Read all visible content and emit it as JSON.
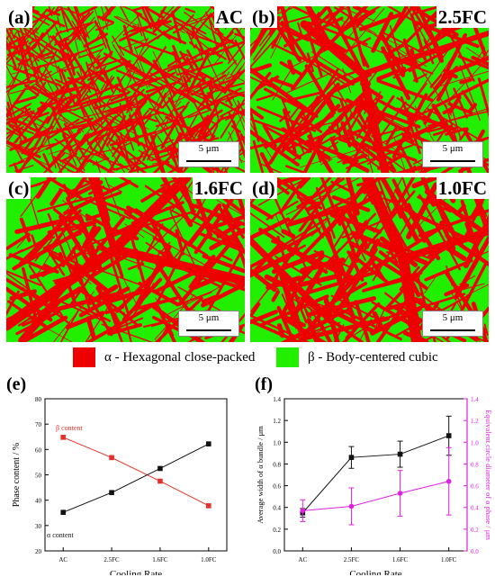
{
  "figure": {
    "panels": [
      {
        "label": "(a)",
        "condition": "AC",
        "scalebar": "5 μm"
      },
      {
        "label": "(b)",
        "condition": "2.5FC",
        "scalebar": "5 μm"
      },
      {
        "label": "(c)",
        "condition": "1.6FC",
        "scalebar": "5 μm"
      },
      {
        "label": "(d)",
        "condition": "1.0FC",
        "scalebar": "5 μm"
      }
    ],
    "legend": [
      {
        "text": "α - Hexagonal close-packed",
        "color": "#ee0000"
      },
      {
        "text": "β - Body-centered cubic",
        "color": "#22ee00"
      }
    ],
    "colors": {
      "alpha": "#ee0000",
      "beta": "#22ee00"
    }
  },
  "chart_data": [
    {
      "panel_label": "(e)",
      "type": "line",
      "categories": [
        "AC",
        "2.5FC",
        "1.6FC",
        "1.0FC"
      ],
      "series": [
        {
          "name": "β content",
          "values": [
            64.8,
            56.8,
            47.5,
            37.8
          ],
          "color": "#e8302a",
          "marker": "square"
        },
        {
          "name": "α content",
          "values": [
            35.2,
            43.0,
            52.5,
            62.2
          ],
          "color": "#111111",
          "marker": "square"
        }
      ],
      "xlabel": "Cooling Rate",
      "ylabel": "Phase content / %",
      "ylim": [
        20,
        80
      ],
      "yticks": [
        20,
        30,
        40,
        50,
        60,
        70,
        80
      ],
      "grid": false
    },
    {
      "panel_label": "(f)",
      "type": "line",
      "categories": [
        "AC",
        "2.5FC",
        "1.6FC",
        "1.0FC"
      ],
      "series": [
        {
          "values": [
            0.35,
            0.86,
            0.89,
            1.06
          ],
          "errors": [
            0.04,
            0.1,
            0.12,
            0.18
          ],
          "color": "#111111",
          "marker": "square",
          "axis": "left"
        },
        {
          "values": [
            0.37,
            0.41,
            0.53,
            0.64
          ],
          "errors": [
            0.1,
            0.17,
            0.21,
            0.31
          ],
          "color": "#e020e0",
          "marker": "circle",
          "axis": "right"
        }
      ],
      "xlabel": "Cooling Rate",
      "ylabel": "Average width of α bundle / μm",
      "y2label": "Equivalent circle diameter of α phase / μm",
      "ylim": [
        0,
        1.4
      ],
      "yticks": [
        "0.0",
        "0.2",
        "0.4",
        "0.6",
        "0.8",
        "1.0",
        "1.2",
        "1.4"
      ],
      "y2lim": [
        0,
        1.4
      ],
      "y2ticks": [
        "0.0",
        "0.2",
        "0.4",
        "0.6",
        "0.8",
        "1.0",
        "1.2",
        "1.4"
      ],
      "y2color": "#e020e0",
      "grid": false
    }
  ]
}
